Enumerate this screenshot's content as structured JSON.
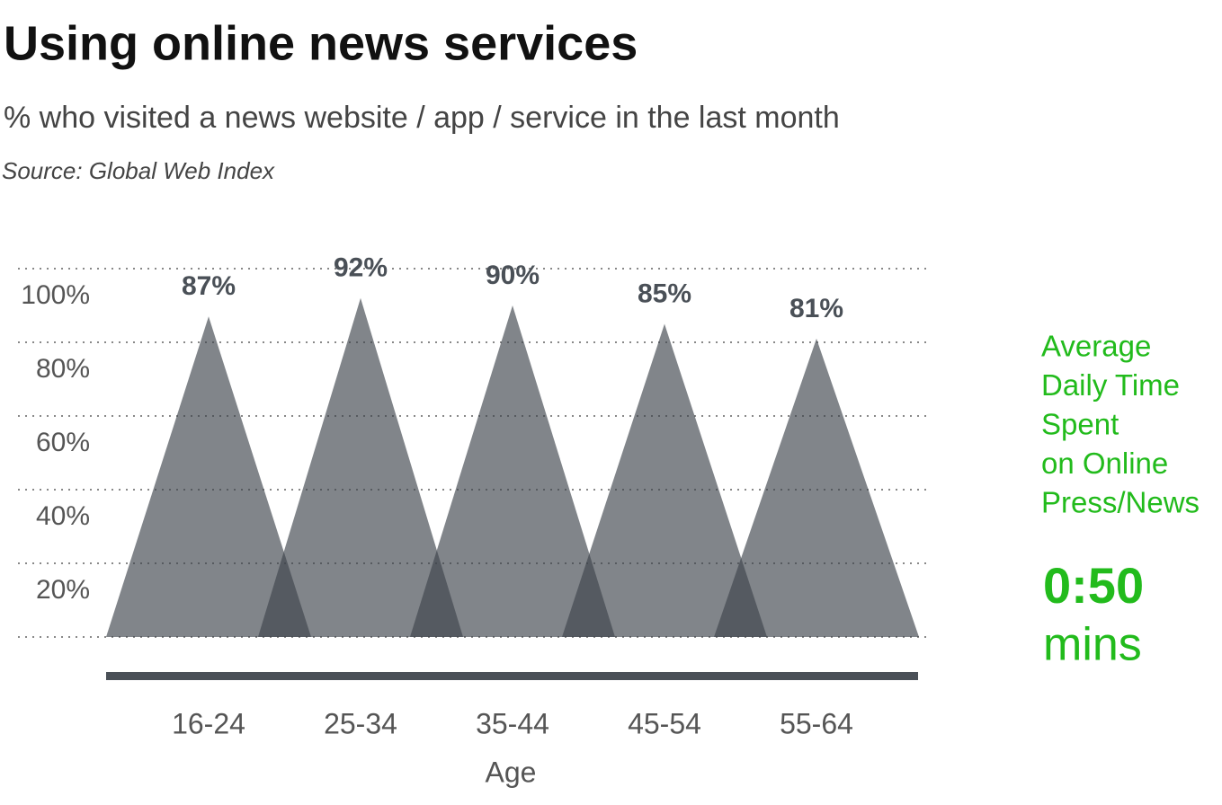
{
  "chart_data": {
    "type": "triangle",
    "title": "Using online news services",
    "subtitle": "% who visited a news website / app / service in the last month",
    "source": "Source: Global Web Index",
    "x_label": "Age",
    "categories": [
      "16-24",
      "25-34",
      "35-44",
      "45-54",
      "55-64"
    ],
    "values": [
      87,
      92,
      90,
      85,
      81
    ],
    "value_labels": [
      "87%",
      "92%",
      "90%",
      "85%",
      "81%"
    ],
    "color": "#3d444b",
    "ylim": [
      0,
      100
    ],
    "yticks": [
      {
        "value": 20,
        "label": "20%"
      },
      {
        "value": 40,
        "label": "40%"
      },
      {
        "value": 60,
        "label": "60%"
      },
      {
        "value": 80,
        "label": "80%"
      },
      {
        "value": 100,
        "label": "100%"
      }
    ],
    "grid": true,
    "annotation": {
      "lines": [
        "Average",
        "Daily Time",
        "Spent",
        "on Online",
        "Press/News"
      ],
      "value": "0:50",
      "unit": "mins",
      "color": "#22bb1c"
    }
  }
}
